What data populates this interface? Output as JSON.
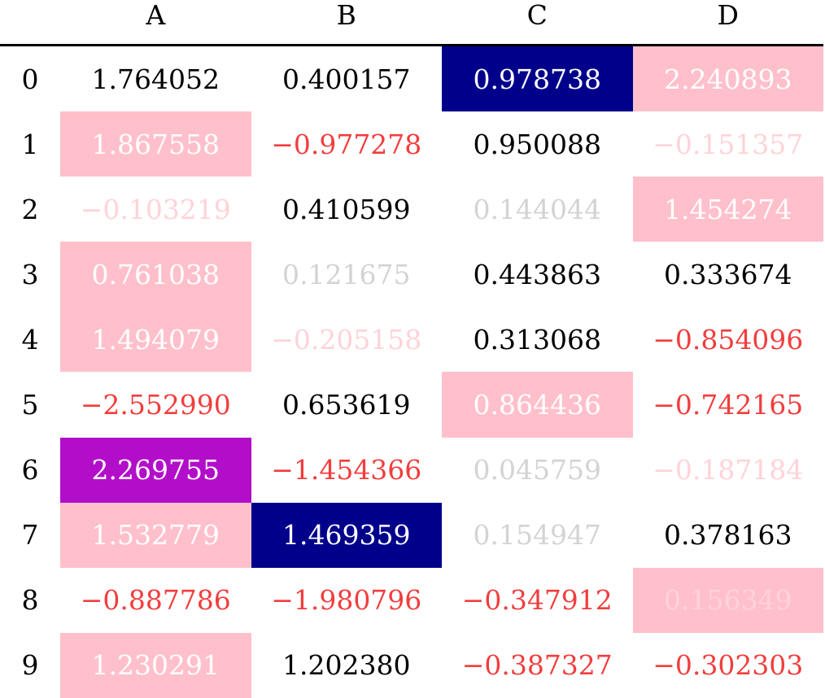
{
  "table": {
    "columns": [
      "A",
      "B",
      "C",
      "D"
    ],
    "index": [
      "0",
      "1",
      "2",
      "3",
      "4",
      "5",
      "6",
      "7",
      "8",
      "9"
    ],
    "rows": [
      [
        "1.764052",
        "0.400157",
        "0.978738",
        "2.240893"
      ],
      [
        "1.867558",
        "−0.977278",
        "0.950088",
        "−0.151357"
      ],
      [
        "−0.103219",
        "0.410599",
        "0.144044",
        "1.454274"
      ],
      [
        "0.761038",
        "0.121675",
        "0.443863",
        "0.333674"
      ],
      [
        "1.494079",
        "−0.205158",
        "0.313068",
        "−0.854096"
      ],
      [
        "−2.552990",
        "0.653619",
        "0.864436",
        "−0.742165"
      ],
      [
        "2.269755",
        "−1.454366",
        "0.045759",
        "−0.187184"
      ],
      [
        "1.532779",
        "1.469359",
        "0.154947",
        "0.378163"
      ],
      [
        "−0.887786",
        "−1.980796",
        "−0.347912",
        "0.156349"
      ],
      [
        "1.230291",
        "1.202380",
        "−0.387327",
        "−0.302303"
      ]
    ],
    "backgrounds": [
      [
        null,
        null,
        "#00008b",
        "#ffc0cb"
      ],
      [
        "#ffc0cb",
        null,
        null,
        null
      ],
      [
        null,
        null,
        null,
        "#ffc0cb"
      ],
      [
        "#ffc0cb",
        null,
        null,
        null
      ],
      [
        "#ffc0cb",
        null,
        null,
        null
      ],
      [
        null,
        null,
        "#ffc0cb",
        null
      ],
      [
        "#b20ec9",
        null,
        null,
        null
      ],
      [
        "#ffc0cb",
        "#00008b",
        null,
        null
      ],
      [
        null,
        null,
        null,
        "#ffc0cb"
      ],
      [
        "#ffc0cb",
        null,
        null,
        null
      ]
    ],
    "text_colors": [
      [
        "#000000",
        "#000000",
        "#ffffff",
        "#ffffff"
      ],
      [
        "#ffffff",
        "#f23d3d",
        "#000000",
        "#ffd3d8"
      ],
      [
        "#ffd3d8",
        "#000000",
        "#d3d3d3",
        "#ffffff"
      ],
      [
        "#ffffff",
        "#d3d3d3",
        "#000000",
        "#000000"
      ],
      [
        "#ffffff",
        "#ffd3d8",
        "#000000",
        "#f23d3d"
      ],
      [
        "#f23d3d",
        "#000000",
        "#ffffff",
        "#f23d3d"
      ],
      [
        "#ffffff",
        "#f23d3d",
        "#d3d3d3",
        "#ffd3d8"
      ],
      [
        "#ffffff",
        "#ffffff",
        "#d3d3d3",
        "#000000"
      ],
      [
        "#f23d3d",
        "#f23d3d",
        "#f23d3d",
        "#ffd3d8"
      ],
      [
        "#ffffff",
        "#000000",
        "#f23d3d",
        "#f23d3d"
      ]
    ]
  }
}
